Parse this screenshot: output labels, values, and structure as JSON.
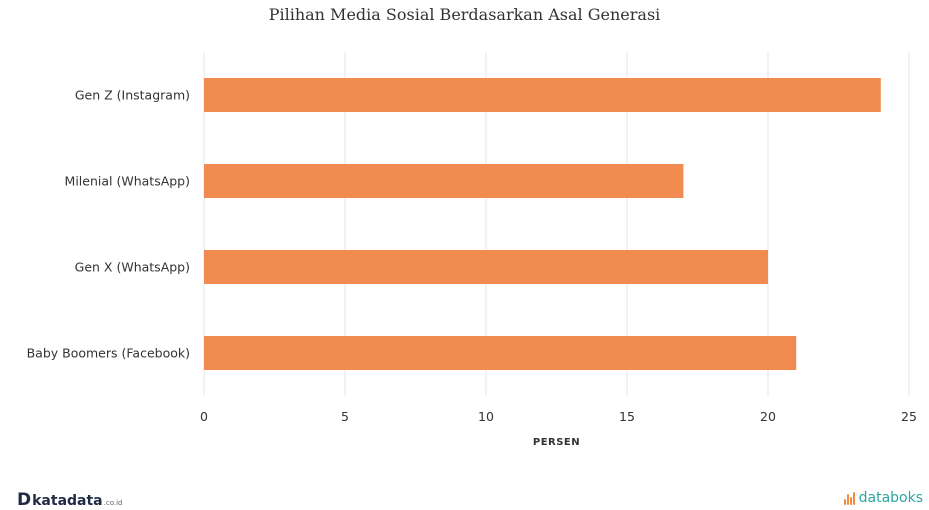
{
  "chart_data": {
    "type": "bar",
    "orientation": "horizontal",
    "title": "Pilihan Media Sosial Berdasarkan Asal Generasi",
    "categories": [
      "Gen Z (Instagram)",
      "Milenial (WhatsApp)",
      "Gen X (WhatsApp)",
      "Baby Boomers (Facebook)"
    ],
    "values": [
      24,
      17,
      20,
      21
    ],
    "xlabel": "PERSEN",
    "ylabel": "",
    "xlim": [
      0,
      25
    ],
    "xticks": [
      "0",
      "5",
      "10",
      "15",
      "20",
      "25"
    ],
    "grid": true,
    "legend": "none",
    "bar_color": "#f28b50"
  },
  "footer": {
    "left_logo_mark": "D",
    "left_logo_text": "katadata",
    "left_logo_suffix": ".co.id",
    "right_logo_text": "databoks"
  },
  "colors": {
    "bar": "#f28b50",
    "grid": "#e6e6e6",
    "text": "#333333"
  }
}
